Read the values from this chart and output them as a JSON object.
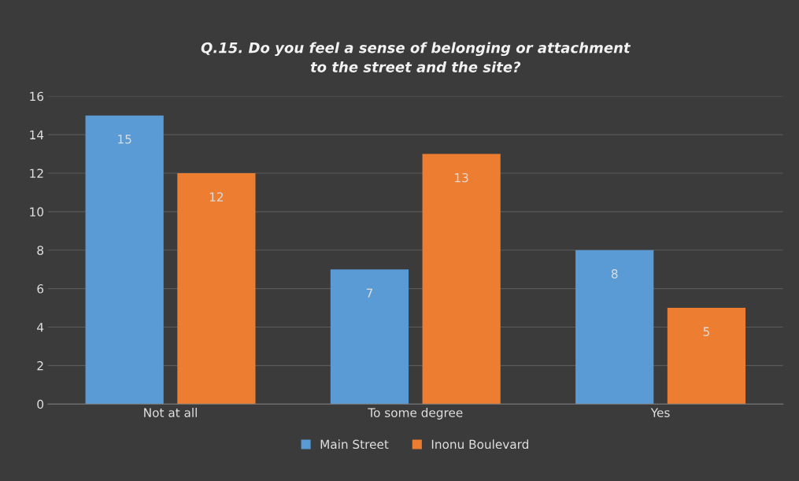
{
  "chart_data": {
    "type": "bar",
    "title": "Q.15. Do you feel a sense of belonging or attachment\nto the street and the site?",
    "categories": [
      "Not at all",
      "To some degree",
      "Yes"
    ],
    "series": [
      {
        "name": "Main Street",
        "color": "#5b9bd5",
        "values": [
          15,
          7,
          8
        ]
      },
      {
        "name": "Inonu Boulevard",
        "color": "#ed7d31",
        "values": [
          12,
          13,
          5
        ]
      }
    ],
    "ylim": [
      0,
      16
    ],
    "yticks": [
      0,
      2,
      4,
      6,
      8,
      10,
      12,
      14,
      16
    ],
    "grid": "y",
    "legend": "bottom",
    "data_labels": true
  }
}
